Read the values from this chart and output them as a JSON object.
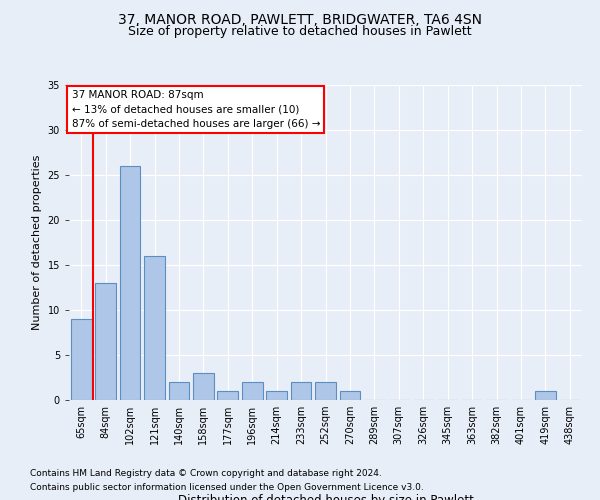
{
  "title1": "37, MANOR ROAD, PAWLETT, BRIDGWATER, TA6 4SN",
  "title2": "Size of property relative to detached houses in Pawlett",
  "xlabel": "Distribution of detached houses by size in Pawlett",
  "ylabel": "Number of detached properties",
  "categories": [
    "65sqm",
    "84sqm",
    "102sqm",
    "121sqm",
    "140sqm",
    "158sqm",
    "177sqm",
    "196sqm",
    "214sqm",
    "233sqm",
    "252sqm",
    "270sqm",
    "289sqm",
    "307sqm",
    "326sqm",
    "345sqm",
    "363sqm",
    "382sqm",
    "401sqm",
    "419sqm",
    "438sqm"
  ],
  "values": [
    9,
    13,
    26,
    16,
    2,
    3,
    1,
    2,
    1,
    2,
    2,
    1,
    0,
    0,
    0,
    0,
    0,
    0,
    0,
    1,
    0
  ],
  "bar_color": "#aec6e8",
  "bar_edge_color": "#5a8fc0",
  "vline_color": "red",
  "vline_x": 0.5,
  "annotation_line1": "37 MANOR ROAD: 87sqm",
  "annotation_line2": "← 13% of detached houses are smaller (10)",
  "annotation_line3": "87% of semi-detached houses are larger (66) →",
  "annotation_box_color": "white",
  "annotation_box_edge_color": "red",
  "ylim": [
    0,
    35
  ],
  "yticks": [
    0,
    5,
    10,
    15,
    20,
    25,
    30,
    35
  ],
  "bg_color": "#e8eef7",
  "plot_bg_color": "#e8eef7",
  "footer1": "Contains HM Land Registry data © Crown copyright and database right 2024.",
  "footer2": "Contains public sector information licensed under the Open Government Licence v3.0.",
  "title1_fontsize": 10,
  "title2_fontsize": 9,
  "xlabel_fontsize": 8.5,
  "ylabel_fontsize": 8,
  "tick_fontsize": 7,
  "annotation_fontsize": 7.5,
  "footer_fontsize": 6.5
}
